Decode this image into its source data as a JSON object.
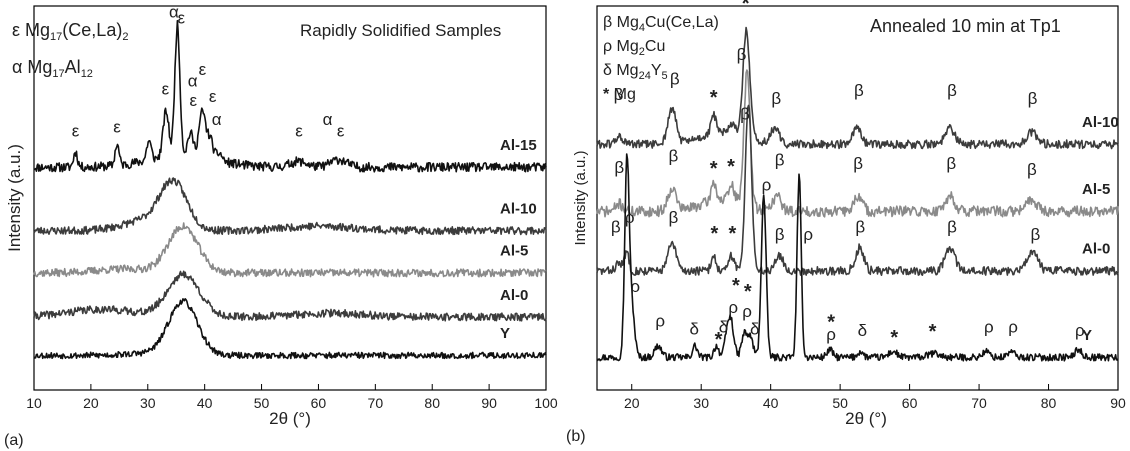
{
  "chart_data": [
    {
      "panel": "(a)",
      "type": "line",
      "title": "Rapidly Solidified Samples",
      "xlabel": "2θ (°)",
      "ylabel": "Intensity (a.u.)",
      "xlim": [
        10,
        100
      ],
      "xticks": [
        10,
        20,
        30,
        40,
        50,
        60,
        70,
        80,
        90,
        100
      ],
      "legend": [
        {
          "symbol": "ε",
          "phase": "Mg17(Ce,La)2"
        },
        {
          "symbol": "α",
          "phase": "Mg17Al12"
        }
      ],
      "series": [
        {
          "name": "Al-15",
          "baseline": 0.58,
          "seed": 11,
          "noise": 0.012,
          "color": "#111111",
          "peaks": [
            [
              17.3,
              0.04,
              0.35
            ],
            [
              24.6,
              0.055,
              0.35
            ],
            [
              30.2,
              0.05,
              0.4
            ],
            [
              33.2,
              0.12,
              0.5
            ],
            [
              35.2,
              0.34,
              0.45
            ],
            [
              37.5,
              0.06,
              0.5
            ],
            [
              39.6,
              0.12,
              0.6
            ],
            [
              41.0,
              0.05,
              0.5
            ],
            [
              42.6,
              0.02,
              0.5
            ],
            [
              56.5,
              0.015,
              1.5
            ],
            [
              63.5,
              0.02,
              1.4
            ],
            [
              36,
              0.03,
              6
            ]
          ]
        },
        {
          "name": "Al-10",
          "baseline": 0.415,
          "seed": 23,
          "noise": 0.01,
          "color": "#3c3c3c",
          "peaks": [
            [
              34.5,
              0.12,
              2.4
            ],
            [
              29.5,
              0.025,
              4
            ],
            [
              60,
              0.012,
              6
            ]
          ]
        },
        {
          "name": "Al-5",
          "baseline": 0.305,
          "seed": 37,
          "noise": 0.01,
          "color": "#8a8a8a",
          "peaks": [
            [
              36.2,
              0.12,
              2.6
            ],
            [
              26,
              0.01,
              5
            ]
          ]
        },
        {
          "name": "Al-0",
          "baseline": 0.19,
          "seed": 41,
          "noise": 0.01,
          "color": "#3c3c3c",
          "peaks": [
            [
              36.3,
              0.11,
              2.8
            ],
            [
              22,
              0.02,
              6
            ],
            [
              62,
              0.01,
              6
            ]
          ]
        },
        {
          "name": "Y",
          "baseline": 0.09,
          "seed": 53,
          "noise": 0.008,
          "color": "#111111",
          "peaks": [
            [
              36.2,
              0.14,
              2.5
            ],
            [
              30,
              0.005,
              4
            ]
          ]
        }
      ],
      "annotations": [
        {
          "text": "ε",
          "x": 17.3,
          "y": 0.66
        },
        {
          "text": "ε",
          "x": 24.6,
          "y": 0.67
        },
        {
          "text": "ε",
          "x": 33.1,
          "y": 0.77
        },
        {
          "text": "α",
          "x": 34.6,
          "y": 0.97
        },
        {
          "text": "ε",
          "x": 35.9,
          "y": 0.955
        },
        {
          "text": "α",
          "x": 37.9,
          "y": 0.79
        },
        {
          "text": "ε",
          "x": 39.6,
          "y": 0.82
        },
        {
          "text": "ε",
          "x": 38.0,
          "y": 0.74
        },
        {
          "text": "ε",
          "x": 41.4,
          "y": 0.75
        },
        {
          "text": "α",
          "x": 42.1,
          "y": 0.69
        },
        {
          "text": "ε",
          "x": 56.6,
          "y": 0.66
        },
        {
          "text": "α",
          "x": 61.6,
          "y": 0.69
        },
        {
          "text": "ε",
          "x": 63.9,
          "y": 0.66
        }
      ]
    },
    {
      "panel": "(b)",
      "type": "line",
      "title": "Annealed 10 min at Tp1",
      "xlabel": "2θ (°)",
      "ylabel": "Intensity (a.u.)",
      "xlim": [
        15,
        90
      ],
      "xticks": [
        20,
        30,
        40,
        50,
        60,
        70,
        80,
        90
      ],
      "legend": [
        {
          "symbol": "β",
          "phase": "Mg4Cu(Ce,La)"
        },
        {
          "symbol": "ρ",
          "phase": "Mg2Cu"
        },
        {
          "symbol": "δ",
          "phase": "Mg24Y5"
        },
        {
          "symbol": "*",
          "phase": "Mg"
        }
      ],
      "series": [
        {
          "name": "Al-10",
          "baseline": 0.64,
          "seed": 61,
          "noise": 0.011,
          "color": "#3c3c3c",
          "peaks": [
            [
              25.8,
              0.09,
              0.6
            ],
            [
              31.8,
              0.05,
              0.35
            ],
            [
              34.5,
              0.03,
              0.4
            ],
            [
              36.5,
              0.28,
              0.5
            ],
            [
              40.6,
              0.04,
              0.6
            ],
            [
              52.4,
              0.04,
              0.6
            ],
            [
              65.8,
              0.04,
              0.7
            ],
            [
              77.6,
              0.03,
              0.8
            ],
            [
              18.2,
              0.02,
              0.5
            ],
            [
              33,
              0.03,
              3
            ]
          ]
        },
        {
          "name": "Al-5",
          "baseline": 0.465,
          "seed": 71,
          "noise": 0.014,
          "color": "#8a8a8a",
          "peaks": [
            [
              25.8,
              0.06,
              0.6
            ],
            [
              31.8,
              0.05,
              0.35
            ],
            [
              34.4,
              0.04,
              0.4
            ],
            [
              36.6,
              0.35,
              0.45
            ],
            [
              40.9,
              0.04,
              0.6
            ],
            [
              52.6,
              0.04,
              0.6
            ],
            [
              65.8,
              0.04,
              0.7
            ],
            [
              77.6,
              0.03,
              0.8
            ],
            [
              18.2,
              0.02,
              0.5
            ],
            [
              33,
              0.03,
              3
            ]
          ]
        },
        {
          "name": "Al-0",
          "baseline": 0.31,
          "seed": 83,
          "noise": 0.011,
          "color": "#3c3c3c",
          "peaks": [
            [
              18.2,
              0.02,
              0.5
            ],
            [
              19.3,
              0.05,
              0.3
            ],
            [
              25.8,
              0.07,
              0.6
            ],
            [
              31.8,
              0.04,
              0.35
            ],
            [
              34.4,
              0.04,
              0.4
            ],
            [
              36.8,
              0.44,
              0.45
            ],
            [
              41.2,
              0.04,
              0.6
            ],
            [
              52.8,
              0.06,
              0.6
            ],
            [
              65.8,
              0.06,
              0.7
            ],
            [
              77.6,
              0.05,
              0.8
            ]
          ]
        },
        {
          "name": "Y",
          "baseline": 0.085,
          "seed": 97,
          "noise": 0.009,
          "color": "#111111",
          "peaks": [
            [
              19.3,
              0.5,
              0.32
            ],
            [
              20.0,
              0.13,
              0.4
            ],
            [
              23.8,
              0.03,
              0.5
            ],
            [
              29.1,
              0.03,
              0.35
            ],
            [
              32.2,
              0.03,
              0.35
            ],
            [
              33.7,
              0.05,
              0.35
            ],
            [
              34.3,
              0.09,
              0.4
            ],
            [
              36.2,
              0.06,
              0.4
            ],
            [
              37.1,
              0.05,
              0.4
            ],
            [
              39.0,
              0.42,
              0.35
            ],
            [
              44.1,
              0.47,
              0.3
            ],
            [
              48.5,
              0.02,
              0.4
            ],
            [
              52.9,
              0.015,
              0.4
            ],
            [
              57.6,
              0.015,
              0.6
            ],
            [
              63.5,
              0.01,
              0.8
            ],
            [
              71.0,
              0.015,
              0.5
            ],
            [
              74.6,
              0.015,
              0.5
            ],
            [
              84.3,
              0.02,
              0.5
            ]
          ]
        }
      ],
      "annotations": [
        {
          "text": "β",
          "x": 18.1,
          "y": 0.755
        },
        {
          "text": "β",
          "x": 26.2,
          "y": 0.795
        },
        {
          "text": "*",
          "x": 31.8,
          "y": 0.745
        },
        {
          "text": "β",
          "x": 35.8,
          "y": 0.86
        },
        {
          "text": "β",
          "x": 40.8,
          "y": 0.745
        },
        {
          "text": "β",
          "x": 52.7,
          "y": 0.765
        },
        {
          "text": "β",
          "x": 66.1,
          "y": 0.765
        },
        {
          "text": "β",
          "x": 77.7,
          "y": 0.745
        },
        {
          "text": "*",
          "x": 36.4,
          "y": 0.99
        },
        {
          "text": "β",
          "x": 18.2,
          "y": 0.565
        },
        {
          "text": "β",
          "x": 26.0,
          "y": 0.595
        },
        {
          "text": "*",
          "x": 31.8,
          "y": 0.56
        },
        {
          "text": "*",
          "x": 34.3,
          "y": 0.565
        },
        {
          "text": "β",
          "x": 36.3,
          "y": 0.705
        },
        {
          "text": "β",
          "x": 41.3,
          "y": 0.585
        },
        {
          "text": "β",
          "x": 52.6,
          "y": 0.575
        },
        {
          "text": "β",
          "x": 66.0,
          "y": 0.575
        },
        {
          "text": "β",
          "x": 77.6,
          "y": 0.56
        },
        {
          "text": "β",
          "x": 17.7,
          "y": 0.41
        },
        {
          "text": "ρ",
          "x": 19.7,
          "y": 0.435
        },
        {
          "text": "β",
          "x": 26.0,
          "y": 0.435
        },
        {
          "text": "*",
          "x": 31.9,
          "y": 0.39
        },
        {
          "text": "*",
          "x": 34.5,
          "y": 0.39
        },
        {
          "text": "β",
          "x": 41.3,
          "y": 0.39
        },
        {
          "text": "ρ",
          "x": 45.4,
          "y": 0.39
        },
        {
          "text": "β",
          "x": 52.9,
          "y": 0.41
        },
        {
          "text": "β",
          "x": 66.1,
          "y": 0.41
        },
        {
          "text": "β",
          "x": 78.1,
          "y": 0.39
        },
        {
          "text": "ρ",
          "x": 20.5,
          "y": 0.255
        },
        {
          "text": "ρ",
          "x": 24.1,
          "y": 0.165
        },
        {
          "text": "δ",
          "x": 29.0,
          "y": 0.145
        },
        {
          "text": "*",
          "x": 32.5,
          "y": 0.115
        },
        {
          "text": "δ",
          "x": 33.2,
          "y": 0.15
        },
        {
          "text": "ρ",
          "x": 34.6,
          "y": 0.2
        },
        {
          "text": "*",
          "x": 35.0,
          "y": 0.255
        },
        {
          "text": "*",
          "x": 36.7,
          "y": 0.24
        },
        {
          "text": "ρ",
          "x": 36.6,
          "y": 0.19
        },
        {
          "text": "δ",
          "x": 37.7,
          "y": 0.145
        },
        {
          "text": "ρ",
          "x": 39.4,
          "y": 0.52
        },
        {
          "text": "*",
          "x": 48.7,
          "y": 0.16
        },
        {
          "text": "ρ",
          "x": 48.7,
          "y": 0.13
        },
        {
          "text": "δ",
          "x": 53.2,
          "y": 0.14
        },
        {
          "text": "*",
          "x": 57.8,
          "y": 0.12
        },
        {
          "text": "*",
          "x": 63.3,
          "y": 0.135
        },
        {
          "text": "ρ",
          "x": 71.4,
          "y": 0.15
        },
        {
          "text": "ρ",
          "x": 74.9,
          "y": 0.15
        },
        {
          "text": "ρ",
          "x": 84.5,
          "y": 0.14
        }
      ]
    }
  ]
}
